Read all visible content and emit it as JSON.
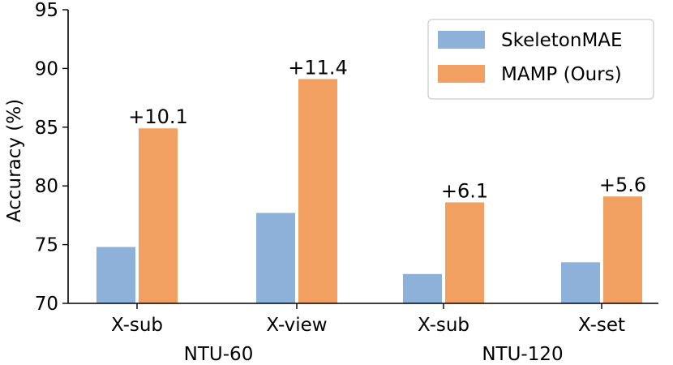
{
  "chart_data": {
    "type": "bar",
    "ylabel": "Accuracy (%)",
    "ylim": [
      70,
      95
    ],
    "yticks": [
      70,
      75,
      80,
      85,
      90,
      95
    ],
    "categories": [
      "X-sub",
      "X-view",
      "X-sub",
      "X-set"
    ],
    "groups": [
      {
        "label": "NTU-60",
        "categories": [
          "X-sub",
          "X-view"
        ]
      },
      {
        "label": "NTU-120",
        "categories": [
          "X-sub",
          "X-set"
        ]
      }
    ],
    "series": [
      {
        "name": "SkeletonMAE",
        "color": "#8eb1da",
        "values": [
          74.8,
          77.7,
          72.5,
          73.5
        ]
      },
      {
        "name": "MAMP (Ours)",
        "color": "#f2a062",
        "values": [
          84.9,
          89.1,
          78.6,
          79.1
        ]
      }
    ],
    "annotations": [
      "+10.1",
      "+11.4",
      "+6.1",
      "+5.6"
    ],
    "legend_position": "top-right",
    "grid": false
  }
}
